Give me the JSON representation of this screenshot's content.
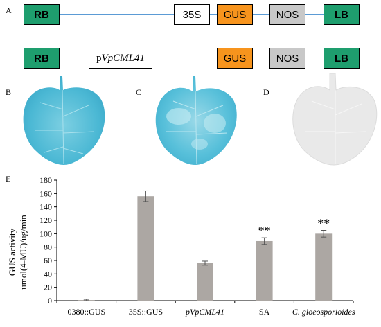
{
  "panel_a": {
    "label": "A",
    "construct1": {
      "rb": "RB",
      "promoter": "35S",
      "gus": "GUS",
      "nos": "NOS",
      "lb": "LB"
    },
    "construct2": {
      "rb": "RB",
      "promoter_prefix": "p",
      "promoter_gene": "VpCML41",
      "gus": "GUS",
      "nos": "NOS",
      "lb": "LB"
    }
  },
  "panel_b": {
    "label": "B"
  },
  "panel_c": {
    "label": "C"
  },
  "panel_d": {
    "label": "D"
  },
  "colors": {
    "rb_lb": "#1e9e6e",
    "gus": "#f7941d",
    "nos": "#c8c8c8",
    "line": "#5b9bd5",
    "bar": "#aca7a3",
    "stain": "#4bb8d4"
  },
  "chart_data": {
    "type": "bar",
    "panel_label": "E",
    "categories": [
      "0380::GUS",
      "35S::GUS",
      "pVpCML41",
      "SA",
      "C. gloeosporioides"
    ],
    "values": [
      1,
      156,
      56,
      89,
      100
    ],
    "errors": [
      1,
      8,
      3,
      5,
      5
    ],
    "significance": [
      "",
      "",
      "",
      "**",
      "**"
    ],
    "ylabel_line1": "GUS activity",
    "ylabel_line2": "umol(4-MU)/ug/min",
    "ylim": [
      0,
      180
    ],
    "yticks": [
      0,
      20,
      40,
      60,
      80,
      100,
      120,
      140,
      160,
      180
    ]
  }
}
